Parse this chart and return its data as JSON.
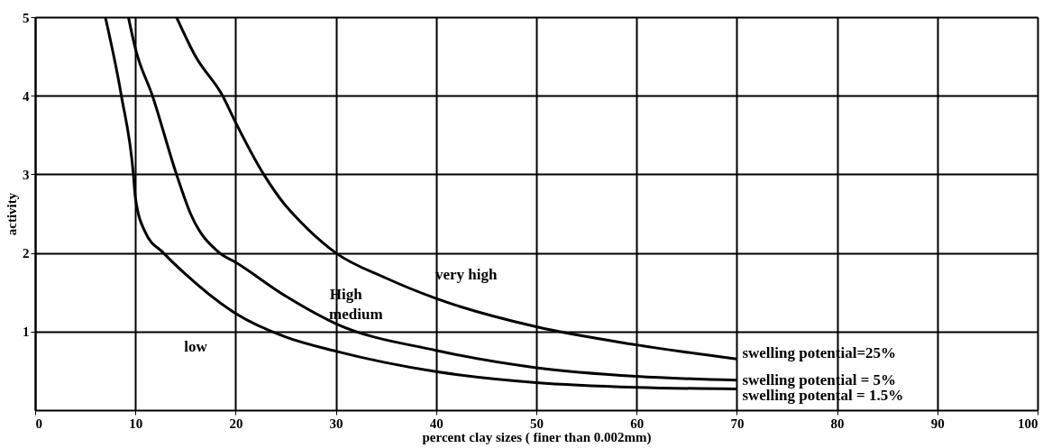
{
  "chart_data": {
    "type": "line",
    "xlabel": "percent clay sizes ( finer than 0.002mm)",
    "ylabel": "activity",
    "xlim": [
      0,
      100
    ],
    "xticks": [
      0,
      10,
      20,
      30,
      40,
      50,
      60,
      70,
      80,
      90,
      100
    ],
    "ylim": [
      0,
      5
    ],
    "yticks": [
      1,
      2,
      3,
      4,
      5
    ],
    "grid": true,
    "legend": false,
    "marker": "none",
    "line_style": "solid",
    "series": [
      {
        "name": "swelling potential=25%",
        "color": "#000000",
        "x": [
          14.1,
          16,
          18.7,
          20,
          22.8,
          25,
          25.7,
          30,
          35,
          40,
          50,
          60,
          70
        ],
        "values": [
          5,
          4.5,
          4,
          3.66,
          3,
          2.6,
          2.5,
          2,
          1.68,
          1.42,
          1.06,
          0.83,
          0.65
        ]
      },
      {
        "name": "swelling potential = 5%",
        "color": "#000000",
        "x": [
          9.3,
          10,
          11.7,
          14.1,
          15.5,
          18.4,
          20,
          25,
          30,
          40,
          50,
          60,
          70
        ],
        "values": [
          5,
          4.6,
          4,
          3,
          2.5,
          2,
          1.88,
          1.45,
          1.1,
          0.76,
          0.54,
          0.43,
          0.38
        ]
      },
      {
        "name": "swelling potental = 1.5%",
        "color": "#000000",
        "x": [
          7,
          8.6,
          9.8,
          10,
          11,
          12.8,
          15,
          20,
          25,
          30,
          40,
          50,
          60,
          70
        ],
        "values": [
          5,
          4,
          3,
          2.7,
          2.26,
          2,
          1.73,
          1.23,
          0.93,
          0.75,
          0.49,
          0.35,
          0.29,
          0.27
        ]
      }
    ],
    "annotations": [
      "very high",
      "High",
      "medium",
      "low"
    ]
  }
}
